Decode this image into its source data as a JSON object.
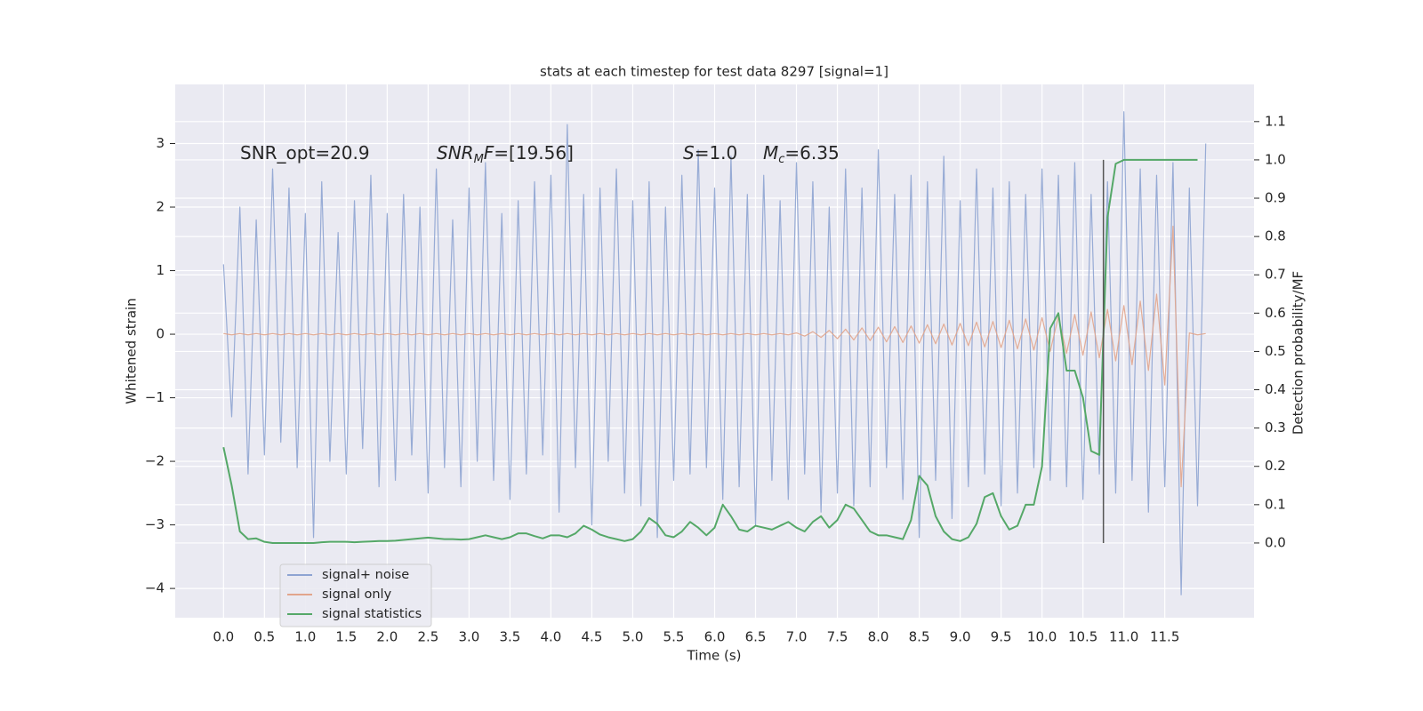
{
  "chart_data": {
    "type": "line",
    "title": "stats at each timestep for test data 8297 [signal=1]",
    "xlabel": "Time (s)",
    "ylabel": "Whitened strain",
    "y2label": "Detection probability/MF",
    "annotations": [
      [
        {
          "text": "SNR_opt=20.9"
        }
      ],
      [
        {
          "text": "SNR",
          "italic": true
        },
        {
          "text": "M",
          "italic": true,
          "sub": true
        },
        {
          "text": "F",
          "italic": true
        },
        {
          "text": "=[19.56]"
        }
      ],
      [
        {
          "text": "S",
          "italic": true
        },
        {
          "text": "=1.0"
        }
      ],
      [
        {
          "text": "M",
          "italic": true
        },
        {
          "text": "c",
          "italic": true,
          "sub": true
        },
        {
          "text": "=6.35"
        }
      ]
    ],
    "xlim": [
      -0.59,
      12.59
    ],
    "ylim": [
      -4.46,
      3.93
    ],
    "y2lim": [
      -0.195,
      1.197
    ],
    "grid": true,
    "legend": "lower left",
    "xticks": [
      {
        "value": 0,
        "label": "0.0"
      },
      {
        "value": 0.5,
        "label": "0.5"
      },
      {
        "value": 1,
        "label": "1.0"
      },
      {
        "value": 1.5,
        "label": "1.5"
      },
      {
        "value": 2,
        "label": "2.0"
      },
      {
        "value": 2.5,
        "label": "2.5"
      },
      {
        "value": 3,
        "label": "3.0"
      },
      {
        "value": 3.5,
        "label": "3.5"
      },
      {
        "value": 4,
        "label": "4.0"
      },
      {
        "value": 4.5,
        "label": "4.5"
      },
      {
        "value": 5,
        "label": "5.0"
      },
      {
        "value": 5.5,
        "label": "5.5"
      },
      {
        "value": 6,
        "label": "6.0"
      },
      {
        "value": 6.5,
        "label": "6.5"
      },
      {
        "value": 7,
        "label": "7.0"
      },
      {
        "value": 7.5,
        "label": "7.5"
      },
      {
        "value": 8,
        "label": "8.0"
      },
      {
        "value": 8.5,
        "label": "8.5"
      },
      {
        "value": 9,
        "label": "9.0"
      },
      {
        "value": 9.5,
        "label": "9.5"
      },
      {
        "value": 10,
        "label": "10.0"
      },
      {
        "value": 10.5,
        "label": "10.5"
      },
      {
        "value": 11,
        "label": "11.0"
      },
      {
        "value": 11.5,
        "label": "11.5"
      }
    ],
    "yticks": [
      {
        "value": -4,
        "label": "−4"
      },
      {
        "value": -3,
        "label": "−3"
      },
      {
        "value": -2,
        "label": "−2"
      },
      {
        "value": -1,
        "label": "−1"
      },
      0,
      1,
      2,
      3
    ],
    "y2ticks": [
      {
        "value": 0,
        "label": "0.0"
      },
      {
        "value": 0.1,
        "label": "0.1"
      },
      {
        "value": 0.2,
        "label": "0.2"
      },
      {
        "value": 0.3,
        "label": "0.3"
      },
      {
        "value": 0.4,
        "label": "0.4"
      },
      {
        "value": 0.5,
        "label": "0.5"
      },
      {
        "value": 0.6,
        "label": "0.6"
      },
      {
        "value": 0.7,
        "label": "0.7"
      },
      {
        "value": 0.8,
        "label": "0.8"
      },
      {
        "value": 0.9,
        "label": "0.9"
      },
      {
        "value": 1,
        "label": "1.0"
      },
      {
        "value": 1.1,
        "label": "1.1"
      }
    ],
    "vline": {
      "x": 10.75,
      "y2": [
        0,
        1.0
      ],
      "color": "#555555"
    },
    "series": [
      {
        "name": "signal+ noise",
        "color": "#8ea4d2",
        "x": [
          0,
          0.1,
          0.2,
          0.3,
          0.4,
          0.5,
          0.6,
          0.7,
          0.8,
          0.9,
          1,
          1.1,
          1.2,
          1.3,
          1.4,
          1.5,
          1.6,
          1.7,
          1.8,
          1.9,
          2,
          2.1,
          2.2,
          2.3,
          2.4,
          2.5,
          2.6,
          2.7,
          2.8,
          2.9,
          3,
          3.1,
          3.2,
          3.3,
          3.4,
          3.5,
          3.6,
          3.7,
          3.8,
          3.9,
          4,
          4.1,
          4.2,
          4.3,
          4.4,
          4.5,
          4.6,
          4.7,
          4.8,
          4.9,
          5,
          5.1,
          5.2,
          5.3,
          5.4,
          5.5,
          5.6,
          5.7,
          5.8,
          5.9,
          6,
          6.1,
          6.2,
          6.3,
          6.4,
          6.5,
          6.6,
          6.7,
          6.8,
          6.9,
          7,
          7.1,
          7.2,
          7.3,
          7.4,
          7.5,
          7.6,
          7.7,
          7.8,
          7.9,
          8,
          8.1,
          8.2,
          8.3,
          8.4,
          8.5,
          8.6,
          8.7,
          8.8,
          8.9,
          9,
          9.1,
          9.2,
          9.3,
          9.4,
          9.5,
          9.6,
          9.7,
          9.8,
          9.9,
          10,
          10.1,
          10.2,
          10.3,
          10.4,
          10.5,
          10.6,
          10.7,
          10.8,
          10.9,
          11,
          11.1,
          11.2,
          11.3,
          11.4,
          11.5,
          11.6,
          11.7,
          11.8,
          11.9,
          12
        ],
        "values": [
          1.1,
          -1.3,
          2.0,
          -2.2,
          1.8,
          -1.9,
          2.6,
          -1.7,
          2.3,
          -2.1,
          1.9,
          -3.2,
          2.4,
          -2.0,
          1.6,
          -2.2,
          2.1,
          -1.8,
          2.5,
          -2.4,
          1.9,
          -2.3,
          2.2,
          -1.9,
          2.0,
          -2.5,
          2.6,
          -2.1,
          1.8,
          -2.4,
          2.3,
          -2.0,
          2.7,
          -2.3,
          1.9,
          -2.6,
          2.1,
          -2.2,
          2.4,
          -1.9,
          2.5,
          -2.8,
          3.3,
          -2.1,
          2.2,
          -3.0,
          2.3,
          -2.0,
          2.6,
          -2.5,
          2.1,
          -2.7,
          2.4,
          -3.2,
          2.0,
          -2.3,
          2.5,
          -2.2,
          2.9,
          -2.1,
          2.3,
          -2.6,
          2.8,
          -2.4,
          2.2,
          -3.0,
          2.5,
          -2.3,
          2.1,
          -2.6,
          2.7,
          -2.2,
          2.4,
          -2.8,
          2.0,
          -2.5,
          2.6,
          -2.7,
          2.3,
          -2.4,
          2.9,
          -2.1,
          2.2,
          -2.6,
          2.5,
          -3.2,
          2.4,
          -2.3,
          2.8,
          -2.9,
          2.1,
          -2.4,
          2.6,
          -2.2,
          2.3,
          -2.7,
          2.4,
          -2.5,
          2.2,
          -2.1,
          2.6,
          -2.3,
          2.5,
          -2.4,
          2.7,
          -2.6,
          2.2,
          -2.2,
          2.4,
          -2.5,
          3.5,
          -2.3,
          2.6,
          -2.8,
          2.5,
          -2.4,
          2.7,
          -4.1,
          2.3,
          -2.7,
          3.0
        ]
      },
      {
        "name": "signal only",
        "color": "#e2a58c",
        "x": [
          0,
          0.1,
          0.2,
          0.3,
          0.4,
          0.5,
          0.6,
          0.7,
          0.8,
          0.9,
          1,
          1.1,
          1.2,
          1.3,
          1.4,
          1.5,
          1.6,
          1.7,
          1.8,
          1.9,
          2,
          2.1,
          2.2,
          2.3,
          2.4,
          2.5,
          2.6,
          2.7,
          2.8,
          2.9,
          3,
          3.1,
          3.2,
          3.3,
          3.4,
          3.5,
          3.6,
          3.7,
          3.8,
          3.9,
          4,
          4.1,
          4.2,
          4.3,
          4.4,
          4.5,
          4.6,
          4.7,
          4.8,
          4.9,
          5,
          5.1,
          5.2,
          5.3,
          5.4,
          5.5,
          5.6,
          5.7,
          5.8,
          5.9,
          6,
          6.1,
          6.2,
          6.3,
          6.4,
          6.5,
          6.6,
          6.7,
          6.8,
          6.9,
          7,
          7.1,
          7.2,
          7.3,
          7.4,
          7.5,
          7.6,
          7.7,
          7.8,
          7.9,
          8,
          8.1,
          8.2,
          8.3,
          8.4,
          8.5,
          8.6,
          8.7,
          8.8,
          8.9,
          9,
          9.1,
          9.2,
          9.3,
          9.4,
          9.5,
          9.6,
          9.7,
          9.8,
          9.9,
          10,
          10.1,
          10.2,
          10.3,
          10.4,
          10.5,
          10.6,
          10.7,
          10.8,
          10.9,
          11,
          11.1,
          11.2,
          11.3,
          11.4,
          11.5,
          11.6,
          11.7,
          11.8,
          11.9,
          12
        ],
        "values": [
          0.01,
          -0.01,
          0.01,
          -0.01,
          0.01,
          -0.01,
          0.01,
          -0.01,
          0.01,
          -0.01,
          0.01,
          -0.01,
          0.01,
          -0.01,
          0.01,
          -0.01,
          0.01,
          -0.01,
          0.01,
          -0.01,
          0.01,
          -0.01,
          0.01,
          -0.01,
          0.01,
          -0.01,
          0.01,
          -0.01,
          0.01,
          -0.01,
          0.01,
          -0.01,
          0.01,
          -0.01,
          0.01,
          -0.01,
          0.01,
          -0.01,
          0.01,
          -0.01,
          0.01,
          -0.01,
          0.01,
          -0.01,
          0.01,
          -0.01,
          0.01,
          -0.01,
          0.01,
          -0.01,
          0.01,
          -0.01,
          0.01,
          -0.01,
          0.01,
          -0.01,
          0.01,
          -0.01,
          0.01,
          -0.01,
          0.01,
          -0.01,
          0.01,
          -0.01,
          0.01,
          -0.01,
          0.01,
          -0.01,
          0.01,
          -0.01,
          0.02,
          -0.03,
          0.04,
          -0.05,
          0.06,
          -0.07,
          0.08,
          -0.09,
          0.1,
          -0.1,
          0.11,
          -0.12,
          0.12,
          -0.13,
          0.13,
          -0.14,
          0.15,
          -0.15,
          0.16,
          -0.17,
          0.17,
          -0.18,
          0.19,
          -0.2,
          0.2,
          -0.21,
          0.22,
          -0.23,
          0.24,
          -0.25,
          0.26,
          -0.27,
          0.28,
          -0.3,
          0.31,
          -0.33,
          0.35,
          -0.37,
          0.39,
          -0.42,
          0.45,
          -0.48,
          0.52,
          -0.57,
          0.63,
          -0.8,
          1.7,
          -2.4,
          0.02,
          -0.01,
          0.01
        ]
      },
      {
        "name": "signal statistics",
        "color": "#55a868",
        "axis": "y2",
        "x": [
          0,
          0.1,
          0.2,
          0.3,
          0.4,
          0.5,
          0.6,
          0.7,
          0.8,
          0.9,
          1,
          1.1,
          1.2,
          1.3,
          1.4,
          1.5,
          1.6,
          1.7,
          1.8,
          1.9,
          2,
          2.1,
          2.2,
          2.3,
          2.4,
          2.5,
          2.6,
          2.7,
          2.8,
          2.9,
          3,
          3.1,
          3.2,
          3.3,
          3.4,
          3.5,
          3.6,
          3.7,
          3.8,
          3.9,
          4,
          4.1,
          4.2,
          4.3,
          4.4,
          4.5,
          4.6,
          4.7,
          4.8,
          4.9,
          5,
          5.1,
          5.2,
          5.3,
          5.4,
          5.5,
          5.6,
          5.7,
          5.8,
          5.9,
          6,
          6.1,
          6.2,
          6.3,
          6.4,
          6.5,
          6.6,
          6.7,
          6.8,
          6.9,
          7,
          7.1,
          7.2,
          7.3,
          7.4,
          7.5,
          7.6,
          7.7,
          7.8,
          7.9,
          8,
          8.1,
          8.2,
          8.3,
          8.4,
          8.5,
          8.6,
          8.7,
          8.8,
          8.9,
          9,
          9.1,
          9.2,
          9.3,
          9.4,
          9.5,
          9.6,
          9.7,
          9.8,
          9.9,
          10,
          10.1,
          10.2,
          10.3,
          10.4,
          10.5,
          10.6,
          10.7,
          10.8,
          10.9,
          11,
          11.1,
          11.2,
          11.3,
          11.4,
          11.5,
          11.6,
          11.7,
          11.8,
          11.9
        ],
        "values": [
          0.25,
          0.15,
          0.03,
          0.01,
          0.012,
          0.003,
          0.0,
          0.0,
          0.0,
          0.0,
          0.0,
          0.0,
          0.002,
          0.003,
          0.003,
          0.003,
          0.002,
          0.003,
          0.004,
          0.005,
          0.005,
          0.006,
          0.008,
          0.01,
          0.012,
          0.014,
          0.012,
          0.01,
          0.01,
          0.009,
          0.01,
          0.015,
          0.02,
          0.015,
          0.01,
          0.015,
          0.025,
          0.025,
          0.018,
          0.012,
          0.02,
          0.02,
          0.015,
          0.025,
          0.045,
          0.035,
          0.022,
          0.015,
          0.01,
          0.005,
          0.01,
          0.03,
          0.065,
          0.05,
          0.02,
          0.015,
          0.03,
          0.055,
          0.04,
          0.02,
          0.04,
          0.1,
          0.07,
          0.035,
          0.03,
          0.045,
          0.04,
          0.035,
          0.045,
          0.055,
          0.04,
          0.03,
          0.055,
          0.07,
          0.04,
          0.06,
          0.1,
          0.09,
          0.06,
          0.03,
          0.02,
          0.02,
          0.015,
          0.01,
          0.06,
          0.175,
          0.15,
          0.07,
          0.03,
          0.01,
          0.005,
          0.015,
          0.05,
          0.12,
          0.13,
          0.07,
          0.035,
          0.045,
          0.1,
          0.1,
          0.2,
          0.56,
          0.6,
          0.45,
          0.45,
          0.38,
          0.24,
          0.23,
          0.85,
          0.99,
          1.0,
          1.0,
          1.0,
          1.0,
          1.0,
          1.0,
          1.0,
          1.0,
          1.0,
          1.0
        ]
      }
    ]
  }
}
